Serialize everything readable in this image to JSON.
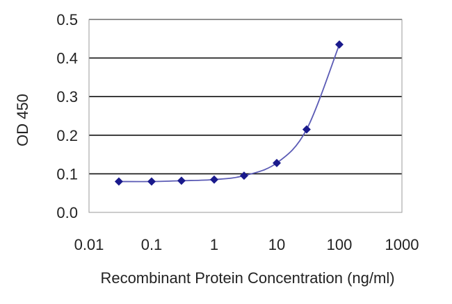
{
  "chart_data": {
    "type": "scatter",
    "title": "",
    "xlabel": "Recombinant Protein Concentration (ng/ml)",
    "ylabel": "OD 450",
    "x_scale": "log",
    "xlim": [
      0.01,
      1000
    ],
    "ylim": [
      0,
      0.5
    ],
    "x_ticks": [
      "0.01",
      "0.1",
      "1",
      "10",
      "100",
      "1000"
    ],
    "y_ticks": [
      "0.0",
      "0.1",
      "0.2",
      "0.3",
      "0.4",
      "0.5"
    ],
    "grid": "horizontal",
    "legend": "none",
    "series": [
      {
        "x": [
          0.03,
          0.1,
          0.3,
          1,
          3,
          10,
          30,
          100
        ],
        "y": [
          0.08,
          0.08,
          0.082,
          0.085,
          0.095,
          0.128,
          0.215,
          0.435
        ],
        "marker": "diamond",
        "line": "fitted-curve"
      }
    ],
    "colors": {
      "marker": "#1a1a8c",
      "curve": "#5b5bb5",
      "grid": "#111111",
      "frame": "#999999"
    }
  }
}
